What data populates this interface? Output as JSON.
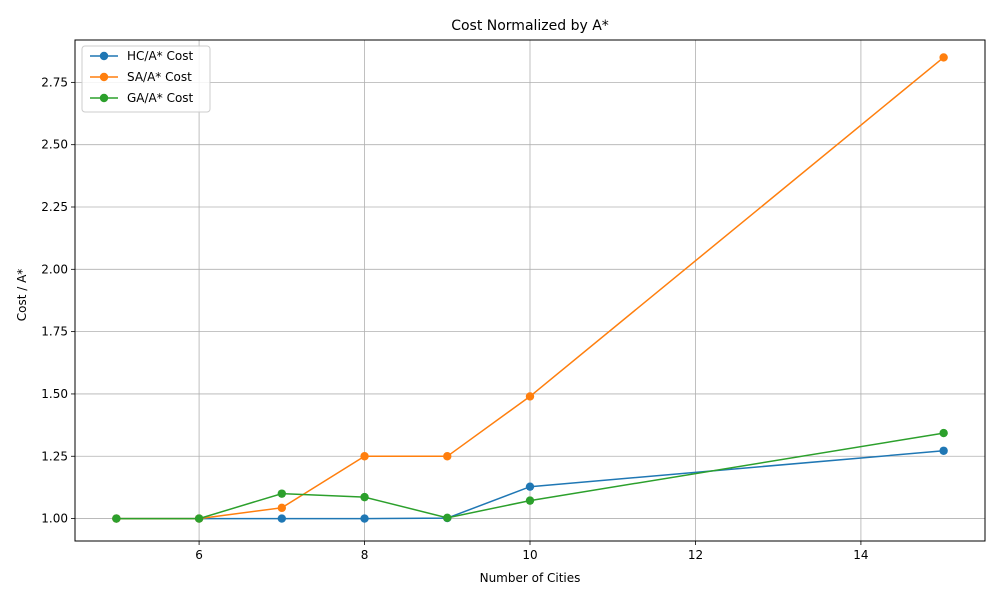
{
  "chart_data": {
    "type": "line",
    "title": "Cost Normalized by A*",
    "xlabel": "Number of Cities",
    "ylabel": "Cost / A*",
    "xlim": [
      4.5,
      15.5
    ],
    "ylim": [
      0.91,
      2.92
    ],
    "xticks": [
      6,
      8,
      10,
      12,
      14
    ],
    "xtick_labels": [
      "6",
      "8",
      "10",
      "12",
      "14"
    ],
    "yticks": [
      1.0,
      1.25,
      1.5,
      1.75,
      2.0,
      2.25,
      2.5,
      2.75
    ],
    "ytick_labels": [
      "1.00",
      "1.25",
      "1.50",
      "1.75",
      "2.00",
      "2.25",
      "2.50",
      "2.75"
    ],
    "grid": true,
    "legend_position": "top-left",
    "x": [
      5,
      6,
      7,
      8,
      9,
      10,
      15
    ],
    "series": [
      {
        "name": "HC/A* Cost",
        "color": "#1f77b4",
        "values": [
          1.0,
          1.0,
          1.0,
          1.0,
          1.002,
          1.128,
          1.272
        ]
      },
      {
        "name": "SA/A* Cost",
        "color": "#ff7f0e",
        "values": [
          1.0,
          1.0,
          1.043,
          1.25,
          1.25,
          1.49,
          2.85
        ]
      },
      {
        "name": "GA/A* Cost",
        "color": "#2ca02c",
        "values": [
          1.0,
          1.0,
          1.1,
          1.086,
          1.003,
          1.072,
          1.343
        ]
      }
    ]
  }
}
